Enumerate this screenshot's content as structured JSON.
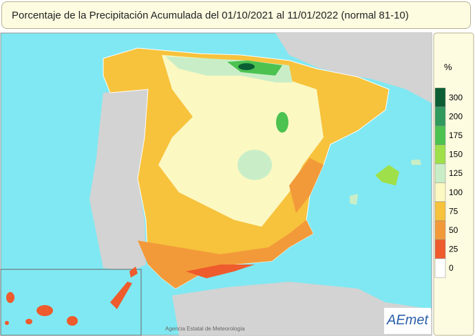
{
  "header": {
    "title": "Porcentaje de la Precipitación Acumulada del 01/10/2021 al 11/01/2022 (normal 81-10)"
  },
  "legend": {
    "unit": "%",
    "items": [
      {
        "label": "300",
        "color": "#0b5e34"
      },
      {
        "label": "200",
        "color": "#2f9a5c"
      },
      {
        "label": "175",
        "color": "#4cc251"
      },
      {
        "label": "150",
        "color": "#9fe04a"
      },
      {
        "label": "125",
        "color": "#c9eec7"
      },
      {
        "label": "100",
        "color": "#fbf8c2"
      },
      {
        "label": "75",
        "color": "#f7c23c"
      },
      {
        "label": "50",
        "color": "#f29a3a"
      },
      {
        "label": "25",
        "color": "#ee5b2c"
      },
      {
        "label": "0",
        "color": "#ffffff"
      }
    ]
  },
  "footer": {
    "credit": "Agencia Estatal de Meteorología",
    "logo": "AEmet"
  }
}
